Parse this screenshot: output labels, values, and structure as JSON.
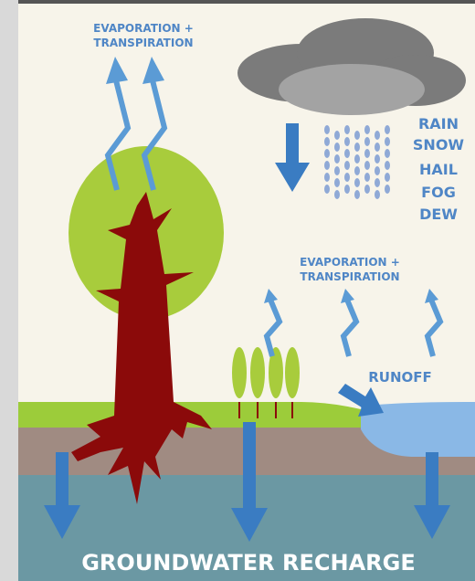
{
  "labels": {
    "evaporation_top": [
      "EVAPORATION +",
      "TRANSPIRATION"
    ],
    "precipitation": [
      "RAIN",
      "SNOW",
      "HAIL",
      "FOG",
      "DEW"
    ],
    "evaporation_middle": [
      "EVAPORATION +",
      "TRANSPIRATION"
    ],
    "runoff": "RUNOFF",
    "groundwater": "GROUNDWATER RECHARGE"
  }
}
